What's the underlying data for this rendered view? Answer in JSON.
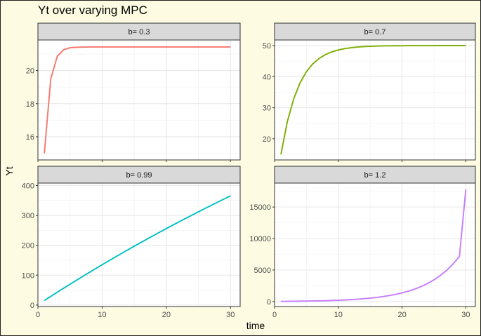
{
  "chart_data": {
    "type": "line",
    "title": "Yt over varying MPC",
    "xlabel": "time",
    "ylabel": "Yt",
    "grid": true,
    "legend": "none",
    "panels": [
      {
        "strip": "b= 0.3",
        "color": "#f8766d",
        "xlim": [
          0,
          31.5
        ],
        "ylim": [
          14.6,
          21.85
        ],
        "xticks": [
          0,
          10,
          20,
          30
        ],
        "yticks": [
          16,
          18,
          20
        ],
        "ytick_labels": [
          "16",
          "18",
          "20"
        ],
        "x": [
          1,
          2,
          3,
          4,
          5,
          6,
          7,
          8,
          9,
          10,
          11,
          12,
          13,
          14,
          15,
          16,
          17,
          18,
          19,
          20,
          21,
          22,
          23,
          24,
          25,
          26,
          27,
          28,
          29,
          30
        ],
        "y": [
          15.0,
          19.5,
          20.85,
          21.26,
          21.38,
          21.41,
          21.42,
          21.43,
          21.43,
          21.43,
          21.43,
          21.43,
          21.43,
          21.43,
          21.43,
          21.43,
          21.43,
          21.43,
          21.43,
          21.43,
          21.43,
          21.43,
          21.43,
          21.43,
          21.43,
          21.43,
          21.43,
          21.43,
          21.43,
          21.43
        ]
      },
      {
        "strip": "b= 0.7",
        "color": "#7cae00",
        "xlim": [
          0,
          31.5
        ],
        "ylim": [
          13.2,
          51.8
        ],
        "xticks": [
          0,
          10,
          20,
          30
        ],
        "yticks": [
          20,
          30,
          40,
          50
        ],
        "ytick_labels": [
          "20",
          "30",
          "40",
          "50"
        ],
        "x": [
          1,
          2,
          3,
          4,
          5,
          6,
          7,
          8,
          9,
          10,
          11,
          12,
          13,
          14,
          15,
          16,
          17,
          18,
          19,
          20,
          21,
          22,
          23,
          24,
          25,
          26,
          27,
          28,
          29,
          30
        ],
        "y": [
          15.0,
          25.5,
          32.85,
          38.0,
          41.6,
          44.12,
          45.88,
          47.12,
          47.98,
          48.59,
          49.01,
          49.31,
          49.52,
          49.66,
          49.76,
          49.84,
          49.89,
          49.92,
          49.94,
          49.96,
          49.97,
          49.98,
          49.99,
          49.99,
          49.99,
          50.0,
          50.0,
          50.0,
          50.0,
          50.0
        ]
      },
      {
        "strip": "b= 0.99",
        "color": "#00bfc4",
        "xlim": [
          0,
          31.5
        ],
        "ylim": [
          -5,
          408
        ],
        "xticks": [
          0,
          10,
          20,
          30
        ],
        "yticks": [
          0,
          100,
          200,
          300,
          400
        ],
        "ytick_labels": [
          "0",
          "100",
          "200",
          "300",
          "400"
        ],
        "x": [
          1,
          2,
          3,
          4,
          5,
          6,
          7,
          8,
          9,
          10,
          11,
          12,
          13,
          14,
          15,
          16,
          17,
          18,
          19,
          20,
          21,
          22,
          23,
          24,
          25,
          26,
          27,
          28,
          29,
          30
        ],
        "y": [
          15.0,
          28.85,
          42.56,
          56.13,
          69.57,
          82.88,
          96.05,
          109.09,
          122.0,
          134.78,
          147.43,
          159.96,
          172.36,
          184.64,
          196.79,
          208.82,
          220.73,
          232.52,
          244.2,
          255.76,
          267.2,
          278.53,
          289.74,
          300.85,
          311.84,
          322.72,
          333.49,
          344.16,
          354.72,
          365.17
        ]
      },
      {
        "strip": "b= 1.2",
        "color": "#c77cff",
        "xlim": [
          0,
          31.5
        ],
        "ylim": [
          -800,
          18800
        ],
        "xticks": [
          0,
          10,
          20,
          30
        ],
        "yticks": [
          0,
          5000,
          10000,
          15000
        ],
        "ytick_labels": [
          "0",
          "5000",
          "10000",
          "15000"
        ],
        "x": [
          1,
          2,
          3,
          4,
          5,
          6,
          7,
          8,
          9,
          10,
          11,
          12,
          13,
          14,
          15,
          16,
          17,
          18,
          19,
          20,
          21,
          22,
          23,
          24,
          25,
          26,
          27,
          28,
          29,
          30
        ],
        "y": [
          15,
          25,
          37,
          49,
          65,
          83,
          105,
          131,
          163,
          200,
          245,
          299,
          363,
          441,
          534,
          646,
          780,
          941,
          1134,
          1366,
          1644,
          1978,
          2379,
          2860,
          3437,
          4129,
          4960,
          5957,
          7154,
          17800
        ]
      }
    ]
  }
}
